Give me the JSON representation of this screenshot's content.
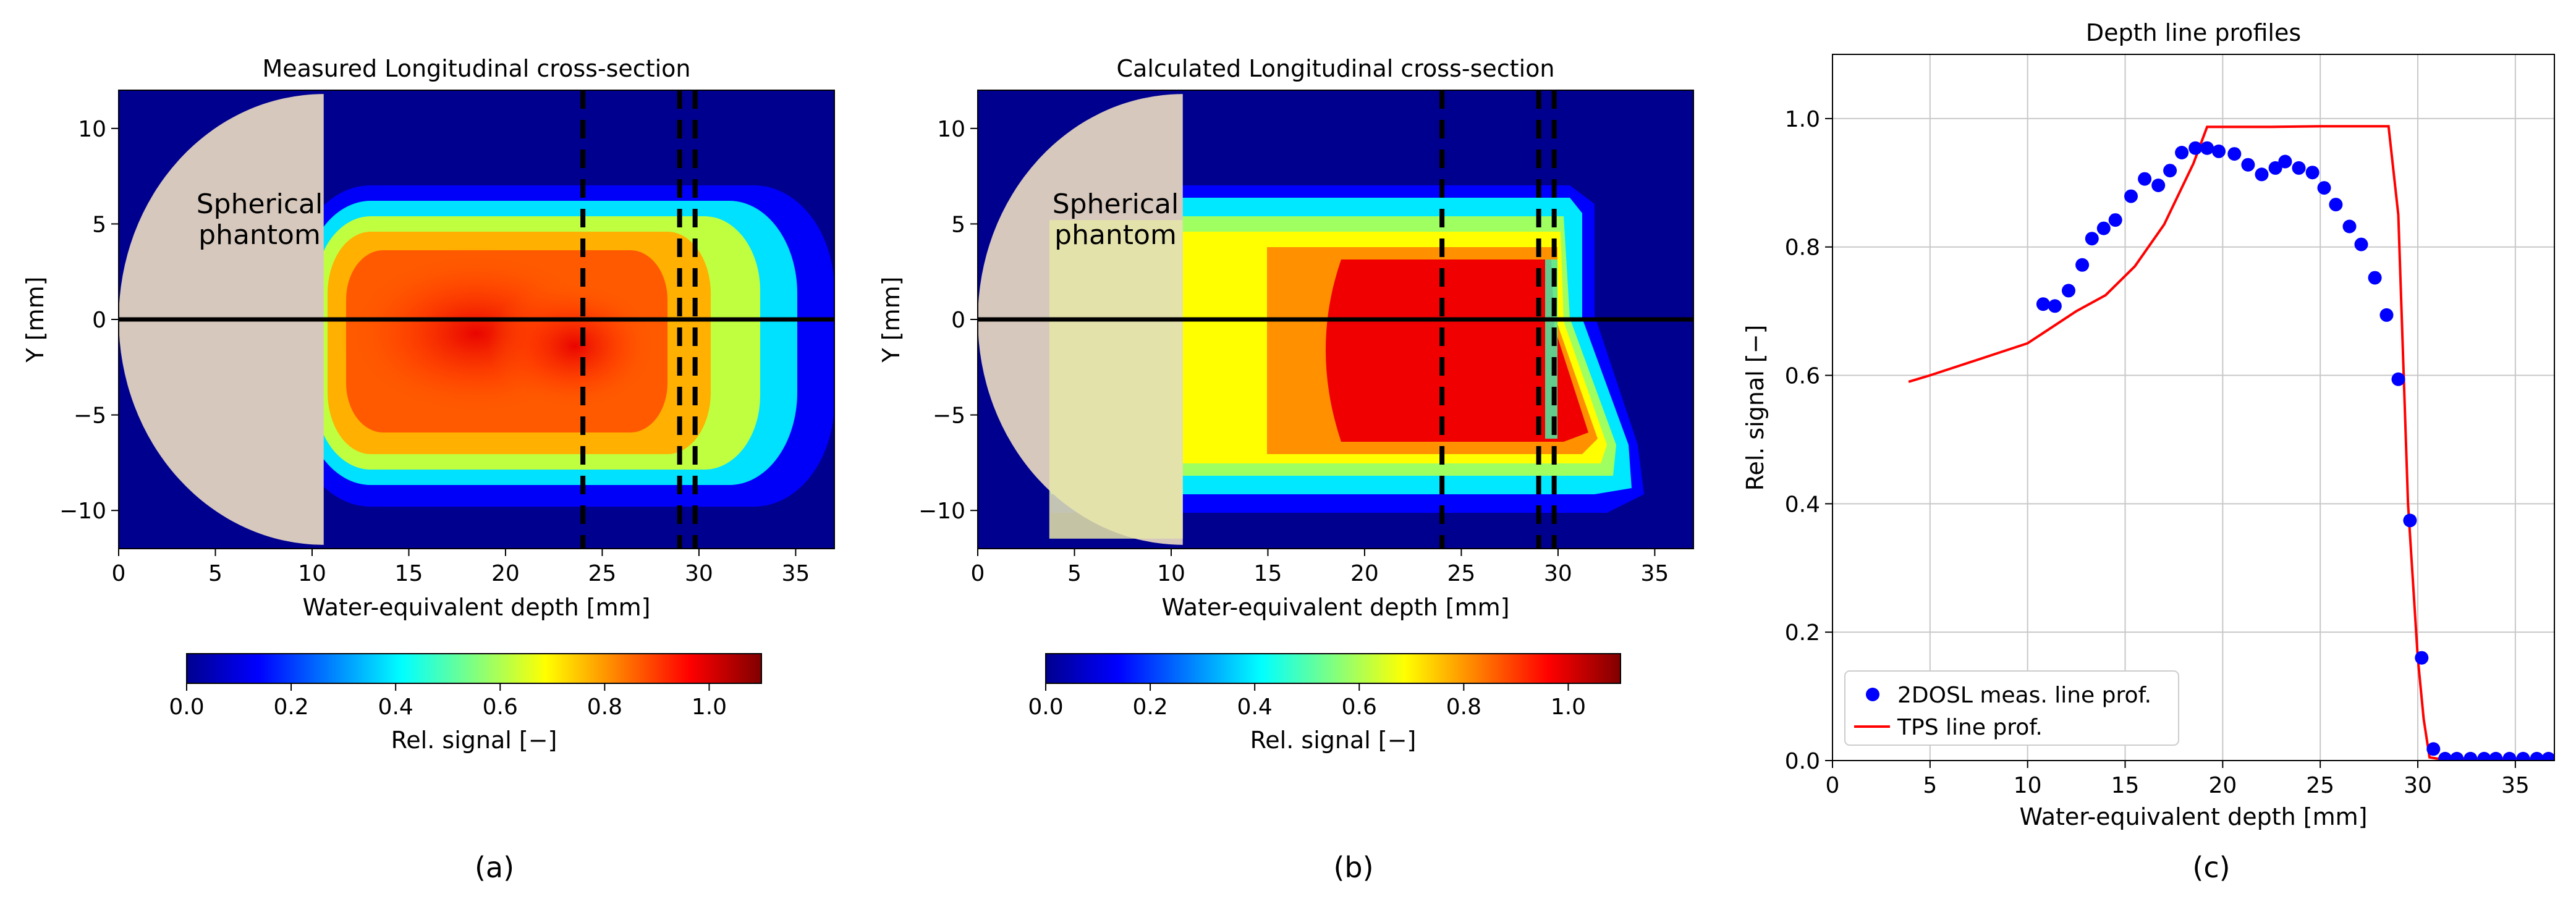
{
  "colormap": [
    "#00008f",
    "#0000ff",
    "#0080ff",
    "#00ffff",
    "#80ff80",
    "#ffff00",
    "#ff8000",
    "#ff0000",
    "#800000"
  ],
  "phantom_color": "#d6c8bd",
  "chart_data": [
    {
      "id": "a",
      "type": "heatmap",
      "title": "Measured Longitudinal cross-section",
      "xlabel": "Water-equivalent depth [mm]",
      "ylabel": "Y [mm]",
      "xlim": [
        0,
        37
      ],
      "ylim": [
        -12,
        12
      ],
      "xticks": [
        0,
        5,
        10,
        15,
        20,
        25,
        30,
        35
      ],
      "yticks": [
        -10,
        -5,
        0,
        5,
        10
      ],
      "panel_label": "(a)",
      "annotation": [
        "Spherical",
        "phantom"
      ],
      "phantom_shade_from": null,
      "dashed_lines_x": [
        24,
        29,
        29.8
      ],
      "horizontal_line_y": 0,
      "colorbar": {
        "label": "Rel. signal [−]",
        "range": [
          0.0,
          1.1
        ],
        "ticks": [
          "0.0",
          "0.2",
          "0.4",
          "0.6",
          "0.8",
          "1.0"
        ]
      }
    },
    {
      "id": "b",
      "type": "heatmap",
      "title": "Calculated Longitudinal cross-section",
      "xlabel": "Water-equivalent depth [mm]",
      "ylabel": "Y [mm]",
      "xlim": [
        0,
        37
      ],
      "ylim": [
        -12,
        12
      ],
      "xticks": [
        0,
        5,
        10,
        15,
        20,
        25,
        30,
        35
      ],
      "yticks": [
        -10,
        -5,
        0,
        5,
        10
      ],
      "panel_label": "(b)",
      "annotation": [
        "Spherical",
        "phantom"
      ],
      "phantom_shade_from": 3.7,
      "dashed_lines_x": [
        24,
        29,
        29.8
      ],
      "horizontal_line_y": 0,
      "colorbar": {
        "label": "Rel. signal [−]",
        "range": [
          0.0,
          1.1
        ],
        "ticks": [
          "0.0",
          "0.2",
          "0.4",
          "0.6",
          "0.8",
          "1.0"
        ]
      }
    },
    {
      "id": "c",
      "type": "line",
      "title": "Depth line profiles",
      "xlabel": "Water-equivalent depth [mm]",
      "ylabel": "Rel. signal [−]",
      "xlim": [
        0,
        37
      ],
      "ylim": [
        0,
        1.1
      ],
      "xticks": [
        0,
        5,
        10,
        15,
        20,
        25,
        30,
        35
      ],
      "yticks": [
        "0.0",
        "0.2",
        "0.4",
        "0.6",
        "0.8",
        "1.0"
      ],
      "grid": true,
      "legend": "lower-left",
      "panel_label": "(c)",
      "series": [
        {
          "name": "2DOSL meas. line prof.",
          "kind": "scatter",
          "color": "#0000ff",
          "x": [
            10.8,
            11.4,
            12.1,
            12.8,
            13.3,
            13.9,
            14.5,
            15.3,
            16.0,
            16.7,
            17.3,
            17.9,
            18.6,
            19.2,
            19.8,
            20.6,
            21.3,
            22.0,
            22.7,
            23.2,
            23.9,
            24.6,
            25.2,
            25.8,
            26.5,
            27.1,
            27.8,
            28.4,
            29.0,
            29.6,
            30.2,
            30.8,
            31.4,
            32.0,
            32.7,
            33.4,
            34.0,
            34.7,
            35.4,
            36.1,
            36.7
          ],
          "y": [
            0.711,
            0.708,
            0.732,
            0.772,
            0.813,
            0.829,
            0.842,
            0.879,
            0.906,
            0.896,
            0.919,
            0.947,
            0.954,
            0.954,
            0.949,
            0.945,
            0.928,
            0.913,
            0.923,
            0.933,
            0.923,
            0.916,
            0.892,
            0.866,
            0.832,
            0.804,
            0.752,
            0.694,
            0.594,
            0.374,
            0.16,
            0.018,
            0.003,
            0.003,
            0.003,
            0.003,
            0.003,
            0.003,
            0.003,
            0.003,
            0.003
          ]
        },
        {
          "name": "TPS line prof.",
          "kind": "line",
          "color": "#ff0000",
          "x": [
            3.9,
            5.0,
            7.5,
            10.0,
            12.5,
            14.0,
            15.5,
            17.0,
            18.5,
            19.2,
            20.0,
            22.5,
            25.0,
            27.5,
            28.5,
            29.0,
            29.5,
            30.0,
            30.3,
            30.6,
            31.0,
            33.0,
            35.0,
            37.0
          ],
          "y": [
            0.59,
            0.6,
            0.625,
            0.65,
            0.7,
            0.725,
            0.77,
            0.835,
            0.93,
            0.987,
            0.987,
            0.987,
            0.988,
            0.988,
            0.988,
            0.85,
            0.4,
            0.16,
            0.065,
            0.005,
            0.003,
            0.003,
            0.003,
            0.003
          ]
        }
      ]
    }
  ]
}
